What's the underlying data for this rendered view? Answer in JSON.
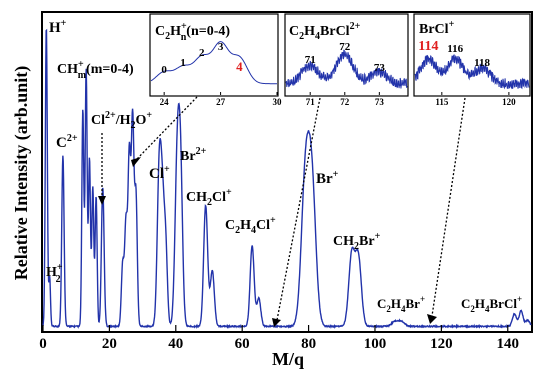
{
  "chart_data": [
    {
      "type": "line",
      "title": "",
      "xlabel": "M/q",
      "ylabel": "Relative Intensity (arb.unit)",
      "xlim": [
        0,
        147
      ],
      "xticks": [
        "0",
        "20",
        "40",
        "60",
        "80",
        "100",
        "120",
        "140"
      ],
      "xtick_values": [
        0,
        20,
        40,
        60,
        80,
        100,
        120,
        140
      ],
      "line_color": "#2233aa",
      "peaks": [
        {
          "mz": 1,
          "height": 0.97,
          "width": 0.3
        },
        {
          "mz": 2,
          "height": 0.16,
          "width": 0.25
        },
        {
          "mz": 6,
          "height": 0.55,
          "width": 0.35
        },
        {
          "mz": 12,
          "height": 0.7,
          "width": 0.3
        },
        {
          "mz": 13,
          "height": 0.83,
          "width": 0.3
        },
        {
          "mz": 14,
          "height": 0.54,
          "width": 0.3
        },
        {
          "mz": 15,
          "height": 0.45,
          "width": 0.3
        },
        {
          "mz": 16,
          "height": 0.42,
          "width": 0.3
        },
        {
          "mz": 18,
          "height": 0.45,
          "width": 0.4
        },
        {
          "mz": 24,
          "height": 0.2,
          "width": 0.4
        },
        {
          "mz": 25,
          "height": 0.33,
          "width": 0.4
        },
        {
          "mz": 26,
          "height": 0.55,
          "width": 0.4
        },
        {
          "mz": 27,
          "height": 0.66,
          "width": 0.4
        },
        {
          "mz": 28,
          "height": 0.42,
          "width": 0.4
        },
        {
          "mz": 35,
          "height": 0.48,
          "width": 0.6
        },
        {
          "mz": 36,
          "height": 0.36,
          "width": 0.6
        },
        {
          "mz": 37,
          "height": 0.22,
          "width": 0.5
        },
        {
          "mz": 40.5,
          "height": 0.56,
          "width": 0.7
        },
        {
          "mz": 41.5,
          "height": 0.4,
          "width": 0.6
        },
        {
          "mz": 49,
          "height": 0.39,
          "width": 0.6
        },
        {
          "mz": 51,
          "height": 0.18,
          "width": 0.6
        },
        {
          "mz": 63,
          "height": 0.26,
          "width": 0.6
        },
        {
          "mz": 65,
          "height": 0.09,
          "width": 0.6
        },
        {
          "mz": 79,
          "height": 0.45,
          "width": 1.2
        },
        {
          "mz": 81,
          "height": 0.44,
          "width": 1.2
        },
        {
          "mz": 93,
          "height": 0.23,
          "width": 0.9
        },
        {
          "mz": 95,
          "height": 0.22,
          "width": 0.9
        },
        {
          "mz": 106,
          "height": 0.015,
          "width": 1.0
        },
        {
          "mz": 108,
          "height": 0.015,
          "width": 1.0
        },
        {
          "mz": 142,
          "height": 0.04,
          "width": 0.6
        },
        {
          "mz": 144,
          "height": 0.05,
          "width": 0.6
        },
        {
          "mz": 146,
          "height": 0.02,
          "width": 0.6
        }
      ],
      "annotations": [
        {
          "label": "H+",
          "mz": 1
        },
        {
          "label": "H2+",
          "mz": 2
        },
        {
          "label": "C2+",
          "mz": 6
        },
        {
          "label": "CHm+(m=0-4)",
          "mz": 14
        },
        {
          "label": "Cl2+/H2O+",
          "mz": 18
        },
        {
          "label": "Cl+",
          "mz": 35
        },
        {
          "label": "Br2+",
          "mz": 40
        },
        {
          "label": "CH2Cl+",
          "mz": 49
        },
        {
          "label": "C2H4Cl+",
          "mz": 63
        },
        {
          "label": "Br+",
          "mz": 80
        },
        {
          "label": "CH2Br+",
          "mz": 94
        },
        {
          "label": "C2H4Br+",
          "mz": 108
        },
        {
          "label": "C2H4BrCl+",
          "mz": 142
        }
      ]
    },
    {
      "type": "line",
      "title": "C2Hn+(n=0-4)",
      "xlim": [
        23.3,
        30
      ],
      "xticks": [
        "24",
        "27",
        "30"
      ],
      "peak_labels": [
        "0",
        "1",
        "2",
        "3",
        "4"
      ],
      "peak_positions": [
        24,
        25,
        26,
        27,
        28
      ],
      "highlight": {
        "label": "4",
        "color": "#e02020"
      }
    },
    {
      "type": "line",
      "title": "C2H4BrCl2+",
      "xlim": [
        70.3,
        73.8
      ],
      "xticks": [
        "71",
        "72",
        "73"
      ],
      "peak_labels": [
        "71",
        "72",
        "73"
      ],
      "peak_positions": [
        71,
        72,
        73
      ]
    },
    {
      "type": "line",
      "title": "BrCl+",
      "xlim": [
        113,
        121.5
      ],
      "xticks": [
        "115",
        "120"
      ],
      "peak_labels": [
        "114",
        "116",
        "118"
      ],
      "peak_positions": [
        114,
        116,
        118
      ],
      "highlight": {
        "label": "114",
        "color": "#e02020"
      }
    }
  ]
}
